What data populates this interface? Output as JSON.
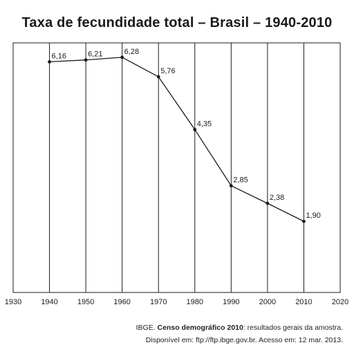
{
  "chart_data": {
    "type": "line",
    "title": "Taxa de fecundidade total – Brasil – 1940-2010",
    "xlabel": "",
    "ylabel": "",
    "xlim": [
      1930,
      2020
    ],
    "ylim": [
      0,
      6.5
    ],
    "x_ticks": [
      "1930",
      "1940",
      "1950",
      "1960",
      "1970",
      "1980",
      "1990",
      "2000",
      "2010",
      "2020"
    ],
    "grid": "vertical",
    "series": [
      {
        "x": [
          1940,
          1950,
          1960,
          1970,
          1980,
          1990,
          2000,
          2010
        ],
        "values": [
          6.16,
          6.21,
          6.28,
          5.76,
          4.35,
          2.85,
          2.38,
          1.9
        ],
        "labels": [
          "6,16",
          "6,21",
          "6,28",
          "5,76",
          "4,35",
          "2,85",
          "2,38",
          "1,90"
        ]
      }
    ],
    "colors": {
      "line": "#1a1a1a",
      "grid": "#1a1a1a"
    }
  },
  "source": {
    "org": "IBGE. ",
    "work": "Censo demográfico 2010",
    "rest": ": resultados gerais da amostra.",
    "line2": "Disponível em: ftp://ftp.ibge.gov.br. Acesso em: 12 mar. 2013."
  }
}
